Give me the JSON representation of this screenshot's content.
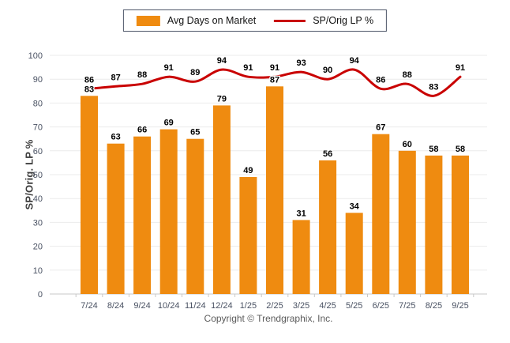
{
  "footer": {
    "copyright": "Copyright © Trendgraphix, Inc."
  },
  "chart_data": {
    "type": "bar",
    "subtype": "bar+line-combo",
    "title": "",
    "xlabel": "",
    "ylabel": "SP/Orig. LP %",
    "ylim": [
      0,
      100
    ],
    "ytick_step": 10,
    "grid": true,
    "legend_position": "top-center",
    "categories": [
      "7/24",
      "8/24",
      "9/24",
      "10/24",
      "11/24",
      "12/24",
      "1/25",
      "2/25",
      "3/25",
      "4/25",
      "5/25",
      "6/25",
      "7/25",
      "8/25",
      "9/25"
    ],
    "series": [
      {
        "name": "Avg Days on Market",
        "type": "bar",
        "color": "#EF8B10",
        "values": [
          83,
          63,
          66,
          69,
          65,
          79,
          49,
          87,
          31,
          56,
          34,
          67,
          60,
          58,
          58
        ]
      },
      {
        "name": "SP/Orig LP %",
        "type": "line",
        "color": "#C90000",
        "values": [
          86,
          87,
          88,
          91,
          89,
          94,
          91,
          91,
          93,
          90,
          94,
          86,
          88,
          83,
          91
        ]
      }
    ],
    "colors": {
      "bar": "#EF8B10",
      "line": "#C90000",
      "data_label": "#000000",
      "axis_label": "#4a5263",
      "gridline": "#ebebeb",
      "baseline": "#c8c8c8",
      "legend_border": "#4d5668"
    }
  }
}
